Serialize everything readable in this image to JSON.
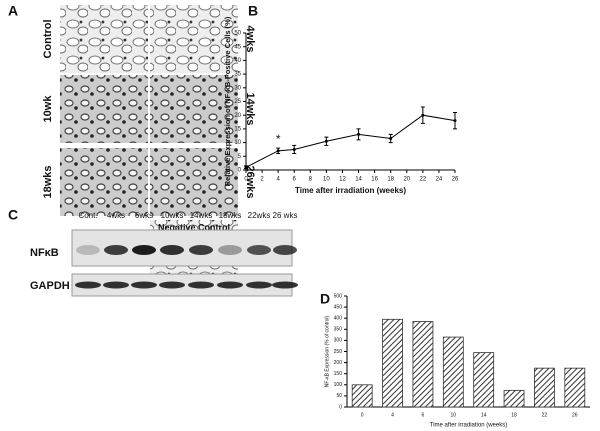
{
  "panel_labels": [
    "A",
    "B",
    "C",
    "D"
  ],
  "panel_a": {
    "images": [
      "Control",
      "4wks",
      "10wk",
      "14wks",
      "18wks",
      "26wks",
      "Negative Control"
    ]
  },
  "panel_c": {
    "lanes": [
      "Cont.",
      "4wks",
      "6wks",
      "10wks",
      "14wks",
      "18wks",
      "22wks",
      "26 wks"
    ],
    "rows": [
      "NFκB",
      "GAPDH"
    ]
  },
  "chart_data": [
    {
      "type": "line",
      "x": [
        0,
        4,
        6,
        10,
        14,
        18,
        22,
        26
      ],
      "values": [
        1,
        7,
        7.5,
        10.5,
        13,
        11.5,
        20,
        18
      ],
      "errors": [
        0.5,
        1,
        1.5,
        1.5,
        2,
        1.5,
        3,
        3
      ],
      "color": "#000",
      "xlabel": "Time after irradiation (weeks)",
      "ylabel": "Relative Expression of NF-κB-Positive Cells (%)",
      "xlim": [
        0,
        26
      ],
      "xticks": [
        0,
        2,
        4,
        6,
        8,
        10,
        12,
        14,
        16,
        18,
        20,
        22,
        24,
        26
      ],
      "ylim": [
        0,
        50
      ],
      "yticks": [
        0,
        5,
        10,
        15,
        20,
        25,
        30,
        35,
        40,
        45,
        50
      ],
      "annotations": [
        {
          "text": "*",
          "x": 4,
          "y": 7
        }
      ]
    },
    {
      "type": "bar",
      "categories": [
        "0",
        "4",
        "6",
        "10",
        "14",
        "18",
        "22",
        "26"
      ],
      "values": [
        100,
        395,
        385,
        315,
        245,
        75,
        175,
        175
      ],
      "color": "#333",
      "xlabel": "Time after irradiation (weeks)",
      "ylabel": "NF-κB Expression (% of control)",
      "ylim": [
        0,
        500
      ],
      "yticks": [
        0,
        50,
        100,
        150,
        200,
        250,
        300,
        350,
        400,
        450,
        500
      ]
    }
  ]
}
